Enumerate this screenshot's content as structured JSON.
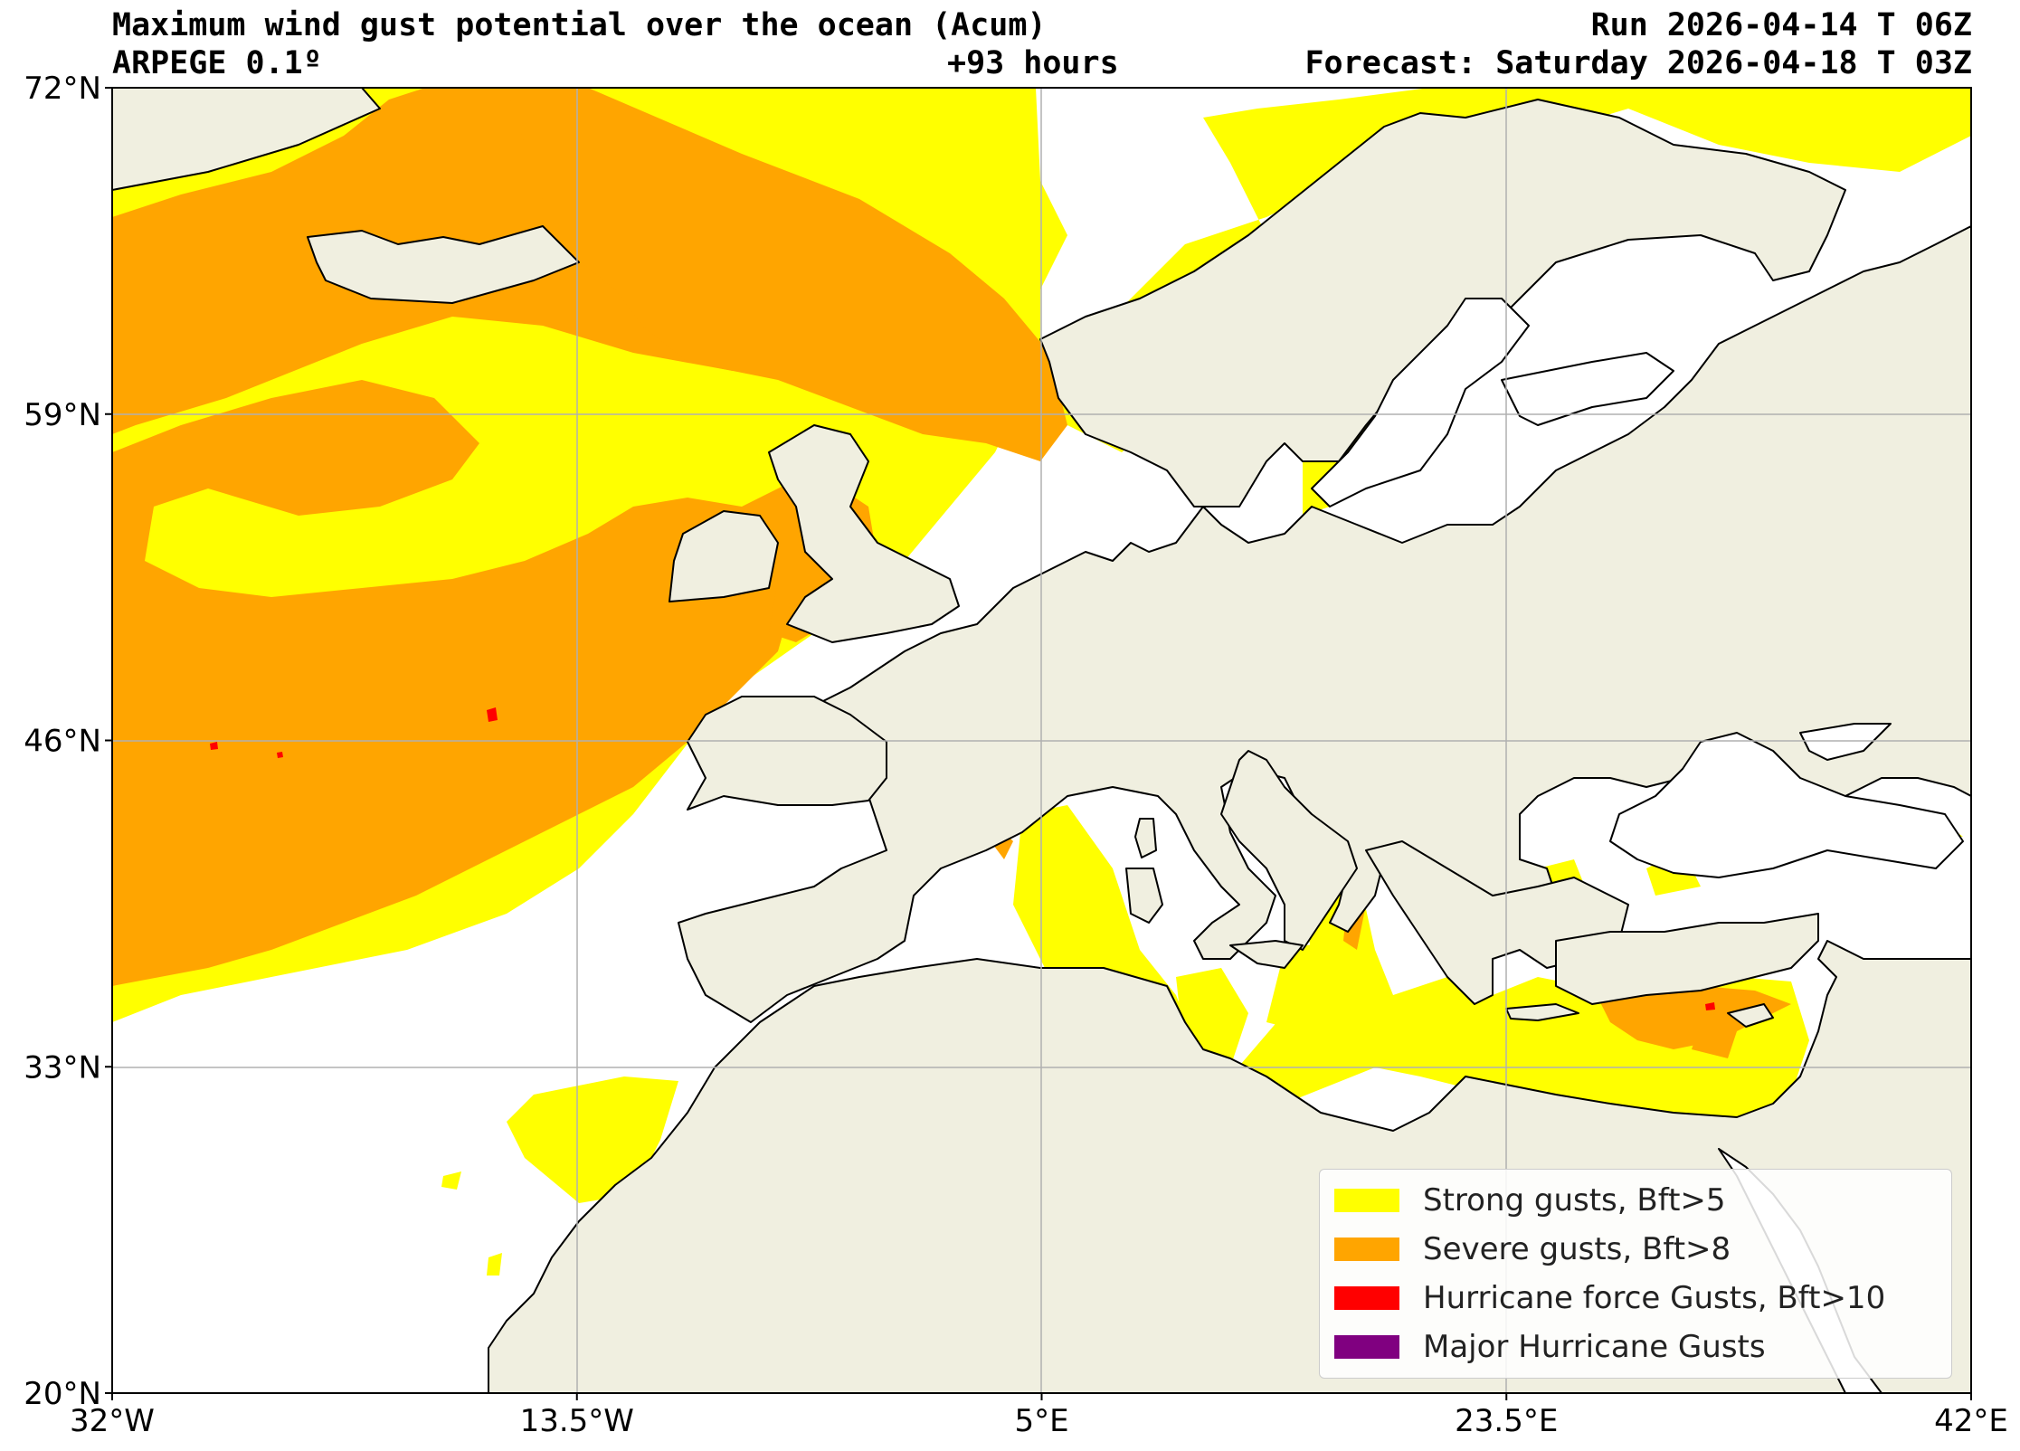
{
  "header": {
    "title": "Maximum wind gust potential over the ocean (Acum)",
    "model": "ARPEGE 0.1º",
    "lead": "+93 hours",
    "run": "Run 2026-04-14 T 06Z",
    "forecast": "Forecast: Saturday 2026-04-18 T 03Z"
  },
  "map": {
    "extent": {
      "lon": [
        -32,
        42
      ],
      "lat": [
        20,
        72
      ]
    },
    "x_ticks": [
      {
        "value": -32,
        "label": "32°W"
      },
      {
        "value": -13.5,
        "label": "13.5°W"
      },
      {
        "value": 5,
        "label": "5°E"
      },
      {
        "value": 23.5,
        "label": "23.5°E"
      },
      {
        "value": 42,
        "label": "42°E"
      }
    ],
    "y_ticks": [
      {
        "value": 72,
        "label": "72°N"
      },
      {
        "value": 59,
        "label": "59°N"
      },
      {
        "value": 46,
        "label": "46°N"
      },
      {
        "value": 33,
        "label": "33°N"
      },
      {
        "value": 20,
        "label": "20°N"
      }
    ],
    "grid": true,
    "land_color": "#f0efe0",
    "sea_color": "#ffffff"
  },
  "legend": {
    "position": "lower-right",
    "items": [
      {
        "label": "Strong gusts, Bft>5",
        "color": "#ffff00"
      },
      {
        "label": "Severe gusts, Bft>8",
        "color": "#ffa500"
      },
      {
        "label": "Hurricane force Gusts, Bft>10",
        "color": "#ff0000"
      },
      {
        "label": "Major Hurricane Gusts",
        "color": "#800080"
      }
    ]
  }
}
